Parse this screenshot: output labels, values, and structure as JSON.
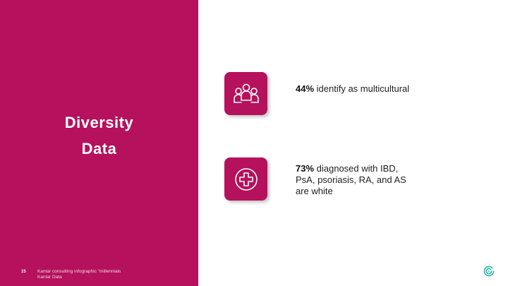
{
  "slide": {
    "title_line1": "Diversity",
    "title_line2": "Data",
    "page_number": "15",
    "source_line1": "Kantar consulting infographic \"millennials",
    "source_line2": "Kantar Data"
  },
  "stats": [
    {
      "icon": "people-group-icon",
      "value": "44%",
      "text": " identify as multicultural"
    },
    {
      "icon": "medical-cross-icon",
      "value": "73%",
      "text": " diagnosed with IBD, PsA, psoriasis, RA, and AS are white"
    }
  ],
  "colors": {
    "accent": "#b5115c",
    "logo": "#2bb7a8"
  }
}
